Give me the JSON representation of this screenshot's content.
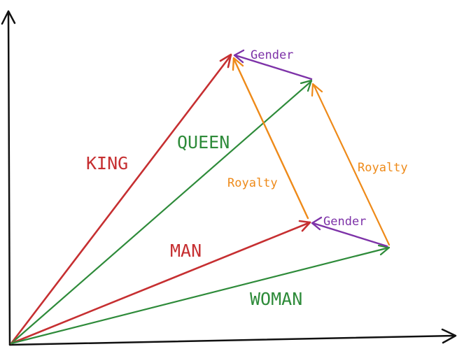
{
  "colors": {
    "axis": "#111111",
    "red": "#c62f31",
    "green": "#2e8b3a",
    "orange": "#ee8a19",
    "purple": "#7d32a8"
  },
  "labels": {
    "king": "KING",
    "queen": "QUEEN",
    "man": "MAN",
    "woman": "WOMAN",
    "royalty_left": "Royalty",
    "royalty_right": "Royalty",
    "gender_top": "Gender",
    "gender_bottom": "Gender"
  }
}
